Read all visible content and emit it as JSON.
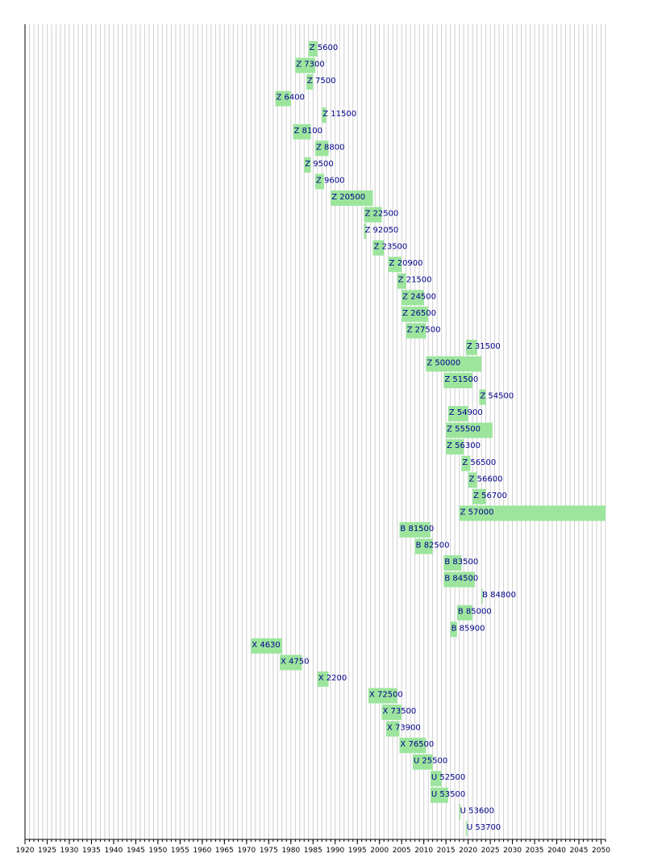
{
  "colors": {
    "bar": "#9de59d",
    "label": "#00008b",
    "grid": "#cfcfcf",
    "axis": "#000000"
  },
  "chart_data": {
    "type": "gantt",
    "title": "",
    "xlabel": "",
    "ylabel": "",
    "xlim": [
      1920,
      2051
    ],
    "grid": true,
    "x_ticks": [
      1920,
      1925,
      1930,
      1935,
      1940,
      1945,
      1950,
      1955,
      1960,
      1965,
      1970,
      1975,
      1980,
      1985,
      1990,
      1995,
      2000,
      2005,
      2010,
      2015,
      2020,
      2025,
      2030,
      2035,
      2040,
      2045,
      2050
    ],
    "tasks": [
      {
        "label": "Z 5600",
        "start": 1984.0,
        "end": 1986.0
      },
      {
        "label": "Z 7300",
        "start": 1981.0,
        "end": 1985.5
      },
      {
        "label": "Z 7500",
        "start": 1983.5,
        "end": 1985.0
      },
      {
        "label": "Z 6400",
        "start": 1976.5,
        "end": 1980.0
      },
      {
        "label": "Z 11500",
        "start": 1987.0,
        "end": 1988.0
      },
      {
        "label": "Z 8100",
        "start": 1980.5,
        "end": 1984.5
      },
      {
        "label": "Z 8800",
        "start": 1985.5,
        "end": 1988.5
      },
      {
        "label": "Z 9500",
        "start": 1983.0,
        "end": 1984.5
      },
      {
        "label": "Z 9600",
        "start": 1985.5,
        "end": 1987.5
      },
      {
        "label": "Z 20500",
        "start": 1989.0,
        "end": 1998.5
      },
      {
        "label": "Z 22500",
        "start": 1996.5,
        "end": 2000.5
      },
      {
        "label": "Z 92050",
        "start": 1996.5,
        "end": 1997.0
      },
      {
        "label": "Z 23500",
        "start": 1998.5,
        "end": 2001.0
      },
      {
        "label": "Z 20900",
        "start": 2002.0,
        "end": 2005.0
      },
      {
        "label": "Z 21500",
        "start": 2004.0,
        "end": 2006.0
      },
      {
        "label": "Z 24500",
        "start": 2005.0,
        "end": 2010.0
      },
      {
        "label": "Z 26500",
        "start": 2005.0,
        "end": 2011.0
      },
      {
        "label": "Z 27500",
        "start": 2006.0,
        "end": 2010.5
      },
      {
        "label": "Z 31500",
        "start": 2019.5,
        "end": 2022.0
      },
      {
        "label": "Z 50000",
        "start": 2010.5,
        "end": 2023.0
      },
      {
        "label": "Z 51500",
        "start": 2014.5,
        "end": 2021.0
      },
      {
        "label": "Z 54500",
        "start": 2022.5,
        "end": 2024.0
      },
      {
        "label": "Z 54900",
        "start": 2015.5,
        "end": 2020.0
      },
      {
        "label": "Z 55500",
        "start": 2015.0,
        "end": 2025.5
      },
      {
        "label": "Z 56300",
        "start": 2015.0,
        "end": 2019.0
      },
      {
        "label": "Z 56500",
        "start": 2018.5,
        "end": 2020.5
      },
      {
        "label": "Z 56600",
        "start": 2020.0,
        "end": 2022.0
      },
      {
        "label": "Z 56700",
        "start": 2021.0,
        "end": 2024.0
      },
      {
        "label": "Z 57000",
        "start": 2018.0,
        "end": 2051.0
      },
      {
        "label": "B 81500",
        "start": 2004.5,
        "end": 2011.5
      },
      {
        "label": "B 82500",
        "start": 2008.0,
        "end": 2012.0
      },
      {
        "label": "B 83500",
        "start": 2014.5,
        "end": 2018.5
      },
      {
        "label": "B 84500",
        "start": 2014.5,
        "end": 2021.5
      },
      {
        "label": "B 84800",
        "start": 2023.0,
        "end": 2023.3
      },
      {
        "label": "B 85000",
        "start": 2017.5,
        "end": 2021.0
      },
      {
        "label": "B 85900",
        "start": 2016.0,
        "end": 2017.5
      },
      {
        "label": "X 4630",
        "start": 1971.0,
        "end": 1978.0
      },
      {
        "label": "X 4750",
        "start": 1977.5,
        "end": 1982.5
      },
      {
        "label": "X 2200",
        "start": 1986.0,
        "end": 1988.5
      },
      {
        "label": "X 72500",
        "start": 1997.5,
        "end": 2004.0
      },
      {
        "label": "X 73500",
        "start": 2000.5,
        "end": 2005.0
      },
      {
        "label": "X 73900",
        "start": 2001.5,
        "end": 2004.5
      },
      {
        "label": "X 76500",
        "start": 2004.5,
        "end": 2010.5
      },
      {
        "label": "U 25500",
        "start": 2007.5,
        "end": 2012.0
      },
      {
        "label": "U 52500",
        "start": 2011.5,
        "end": 2014.0
      },
      {
        "label": "U 53500",
        "start": 2011.5,
        "end": 2015.5
      },
      {
        "label": "U 53600",
        "start": 2018.0,
        "end": 2018.3
      },
      {
        "label": "U 53700",
        "start": 2019.5,
        "end": 2019.8
      }
    ]
  }
}
